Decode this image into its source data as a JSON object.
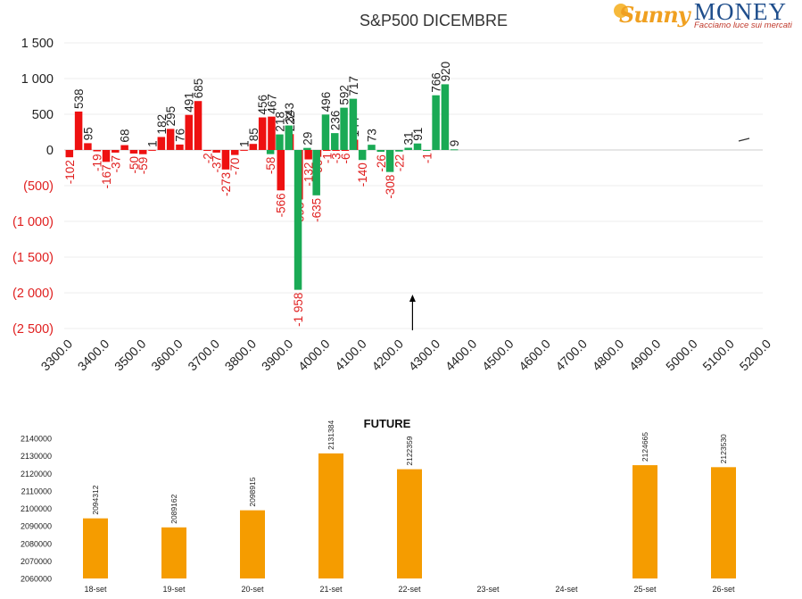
{
  "logo": {
    "brand_a": "Sunny",
    "brand_b": "MONEY",
    "tagline": "Facciamo luce sui mercati"
  },
  "colors": {
    "positive": "#1aaa55",
    "negative": "#ee1111",
    "future": "#f59c00",
    "neg_label": "#e02020"
  },
  "chart_data": [
    {
      "type": "bar",
      "title": "S&P500 DICEMBRE",
      "xlabel": "",
      "ylabel": "",
      "ylim": [
        -2500,
        1500
      ],
      "yticks": [
        {
          "v": 1500,
          "label": "1 500"
        },
        {
          "v": 1000,
          "label": "1 000"
        },
        {
          "v": 500,
          "label": "500"
        },
        {
          "v": 0,
          "label": "0"
        },
        {
          "v": -500,
          "label": "(500)"
        },
        {
          "v": -1000,
          "label": "(1 000)"
        },
        {
          "v": -1500,
          "label": "(1 500)"
        },
        {
          "v": -2000,
          "label": "(2 000)"
        },
        {
          "v": -2500,
          "label": "(2 500)"
        }
      ],
      "xlim": [
        3300,
        5200
      ],
      "xticks": [
        "3300.0",
        "3400.0",
        "3500.0",
        "3600.0",
        "3700.0",
        "3800.0",
        "3900.0",
        "4000.0",
        "4100.0",
        "4200.0",
        "4300.0",
        "4400.0",
        "4500.0",
        "4600.0",
        "4700.0",
        "4800.0",
        "4900.0",
        "5000.0",
        "5100.0",
        "5200.0"
      ],
      "grid": true,
      "marker": {
        "x": 4325,
        "type": "arrow-up"
      },
      "series": [
        {
          "color": "red",
          "points": [
            [
              3325,
              -102
            ],
            [
              3350,
              538
            ],
            [
              3375,
              95
            ],
            [
              3400,
              -19
            ],
            [
              3425,
              -167
            ],
            [
              3450,
              -37
            ],
            [
              3475,
              68
            ],
            [
              3500,
              -50
            ],
            [
              3525,
              -59
            ],
            [
              3550,
              1
            ],
            [
              3575,
              182
            ],
            [
              3600,
              295
            ],
            [
              3625,
              76
            ],
            [
              3650,
              491
            ],
            [
              3675,
              685
            ],
            [
              3700,
              -2
            ],
            [
              3725,
              -37
            ],
            [
              3750,
              -273
            ],
            [
              3775,
              -70
            ],
            [
              3800,
              1
            ],
            [
              3825,
              85
            ],
            [
              3850,
              456
            ],
            [
              3875,
              467
            ],
            [
              3900,
              -566
            ],
            [
              3925,
              222
            ],
            [
              3950,
              -693
            ],
            [
              3975,
              -132
            ],
            [
              4000,
              -96
            ],
            [
              4025,
              -1
            ],
            [
              4050,
              -3
            ],
            [
              4075,
              -6
            ],
            [
              4100,
              144
            ]
          ]
        },
        {
          "color": "green",
          "points": [
            [
              3850,
              -58
            ],
            [
              3875,
              218
            ],
            [
              3900,
              343
            ],
            [
              3925,
              -1958
            ],
            [
              3950,
              29
            ],
            [
              3975,
              -635
            ],
            [
              4000,
              496
            ],
            [
              4025,
              236
            ],
            [
              4050,
              592
            ],
            [
              4075,
              717
            ],
            [
              4100,
              -140
            ],
            [
              4125,
              73
            ],
            [
              4150,
              -26
            ],
            [
              4175,
              -308
            ],
            [
              4200,
              -22
            ],
            [
              4225,
              31
            ],
            [
              4250,
              91
            ],
            [
              4275,
              -1
            ],
            [
              4300,
              766
            ],
            [
              4325,
              920
            ],
            [
              4350,
              9
            ]
          ]
        }
      ]
    },
    {
      "type": "bar",
      "title": "FUTURE",
      "xlabel": "",
      "ylabel": "",
      "ylim": [
        2060000,
        2140000
      ],
      "yticks": [
        "2140000",
        "2130000",
        "2120000",
        "2110000",
        "2100000",
        "2090000",
        "2080000",
        "2070000",
        "2060000"
      ],
      "categories": [
        "18-set",
        "19-set",
        "20-set",
        "21-set",
        "22-set",
        "23-set",
        "24-set",
        "25-set",
        "26-set"
      ],
      "values": [
        2094312,
        2089162,
        2098915,
        2131384,
        2122359,
        null,
        null,
        2124665,
        2123530
      ],
      "value_labels": [
        "2094312",
        "2089162",
        "2098915",
        "2131384",
        "2122359",
        "",
        "",
        "2124665",
        "2123530"
      ]
    }
  ]
}
